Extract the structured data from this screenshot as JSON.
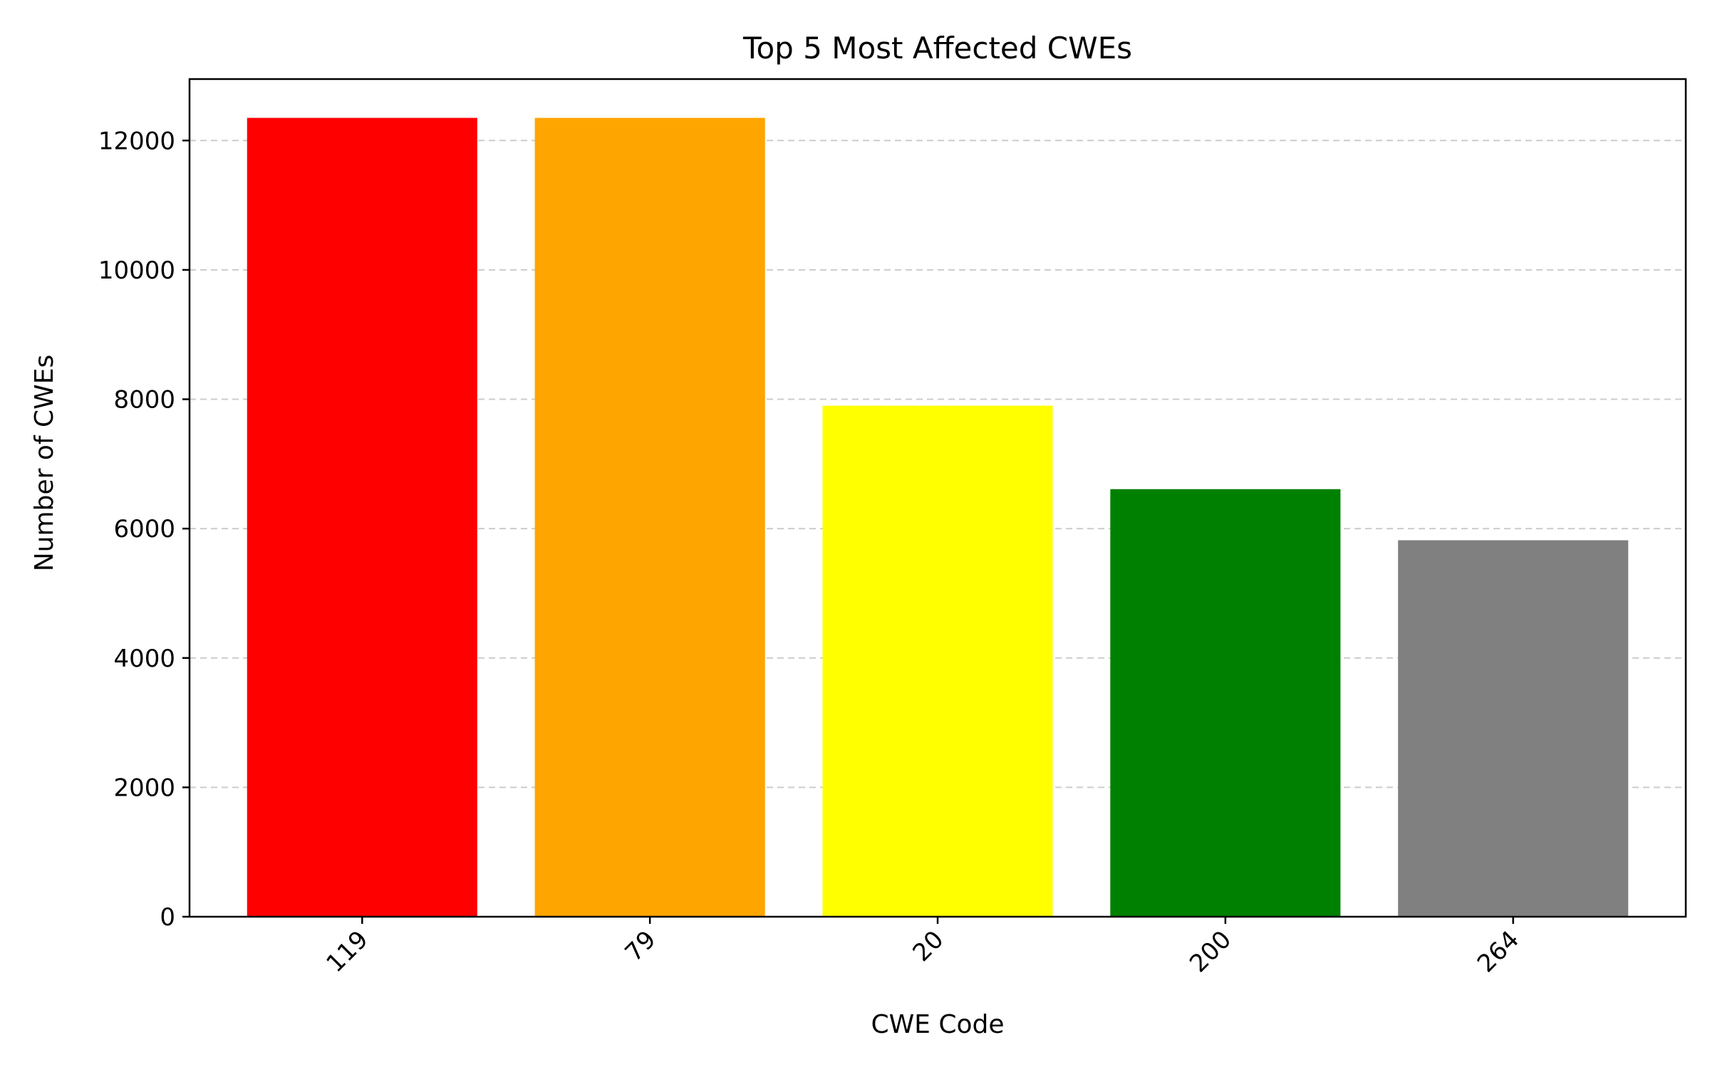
{
  "chart_data": {
    "type": "bar",
    "title": "Top 5 Most Affected CWEs",
    "xlabel": "CWE Code",
    "ylabel": "Number of CWEs",
    "categories": [
      "119",
      "79",
      "20",
      "200",
      "264"
    ],
    "values": [
      12350,
      12350,
      7900,
      6610,
      5820
    ],
    "colors": [
      "#ff0000",
      "#ffa500",
      "#ffff00",
      "#008000",
      "#808080"
    ],
    "ylim": [
      0,
      12950
    ],
    "yticks": [
      0,
      2000,
      4000,
      6000,
      8000,
      10000,
      12000
    ],
    "ytick_labels": [
      "0",
      "2000",
      "4000",
      "6000",
      "8000",
      "10000",
      "12000"
    ],
    "grid": "y-dashed",
    "legend": "none"
  }
}
